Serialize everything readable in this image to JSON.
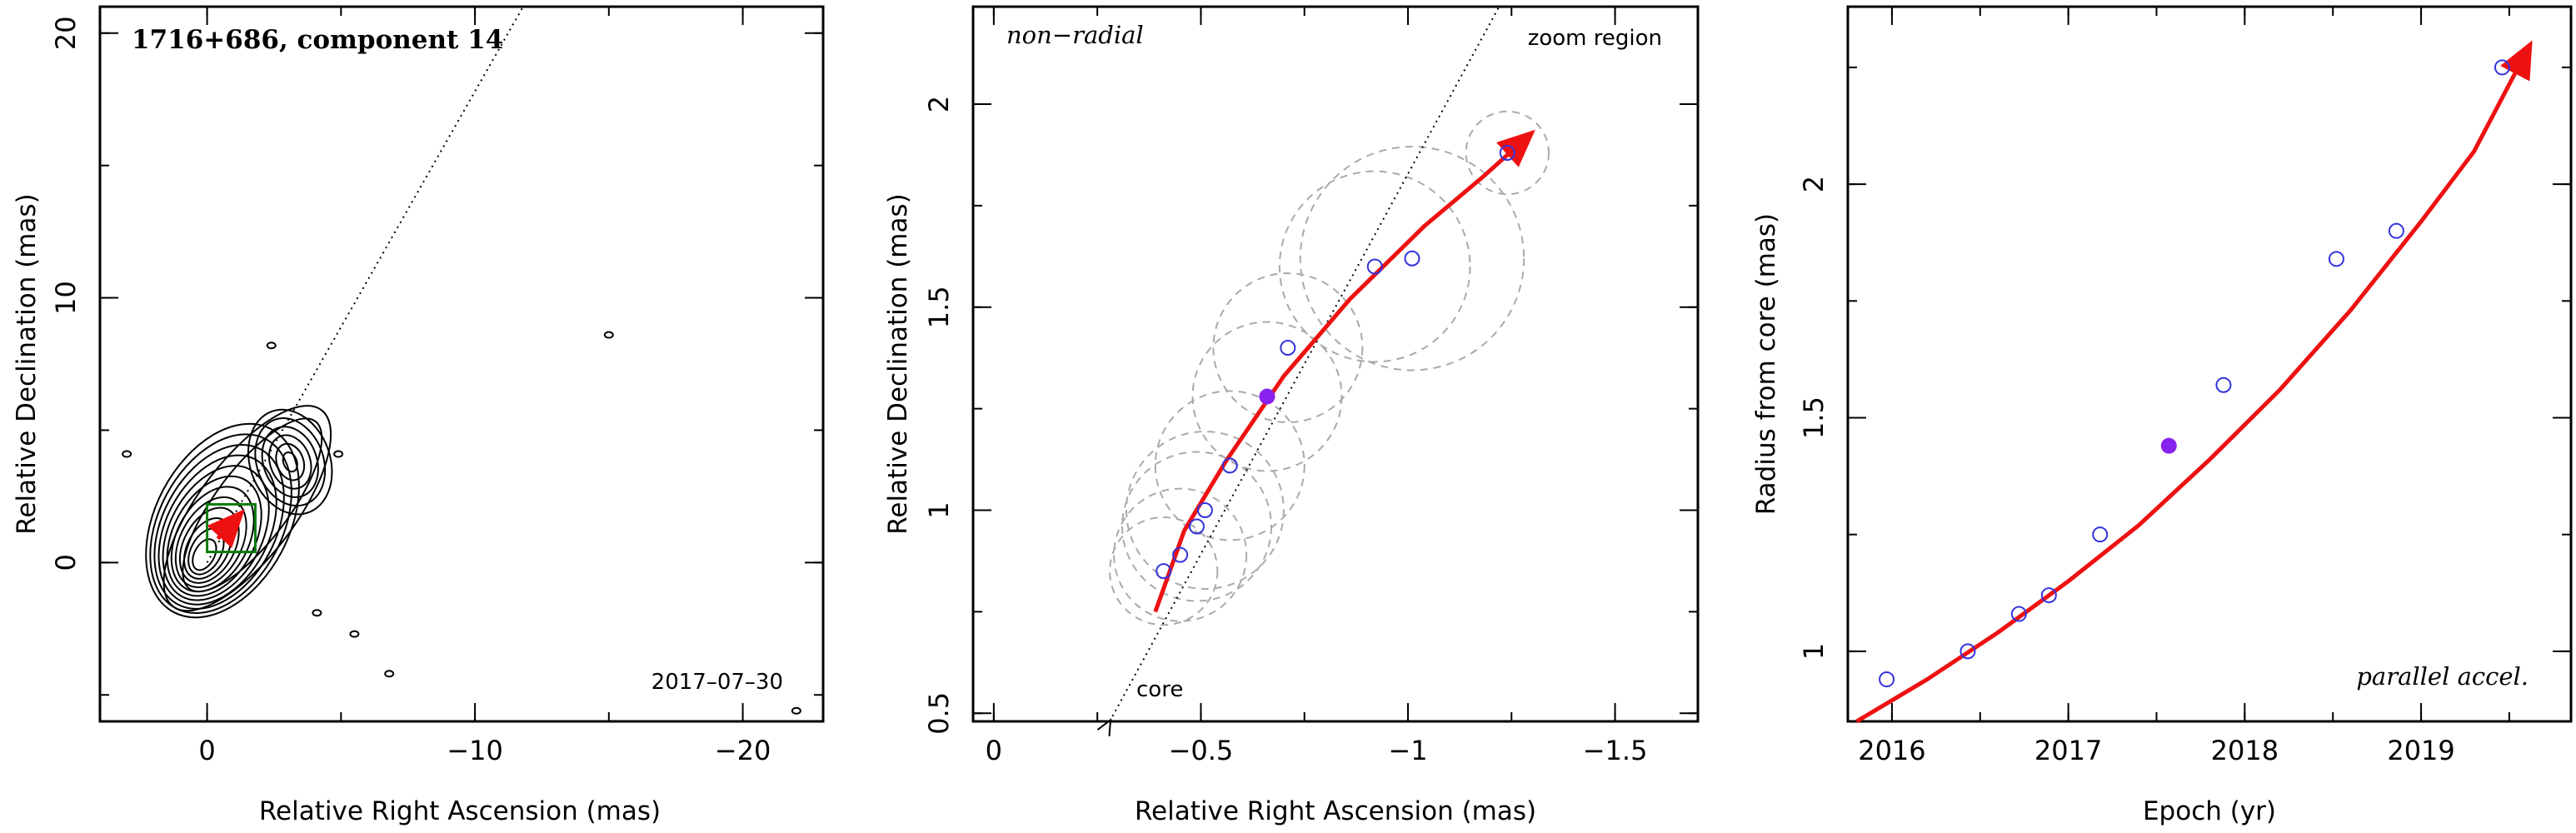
{
  "chart_data": [
    {
      "type": "contour",
      "title": "",
      "xlabel": "Relative Right Ascension (mas)",
      "ylabel": "Relative Declination (mas)",
      "xlim": [
        4,
        -23
      ],
      "ylim": [
        -6,
        21
      ],
      "xticks": [
        0,
        -10,
        -20
      ],
      "yticks": [
        0,
        10,
        20
      ],
      "x_tick_labels": [
        "0",
        "−10",
        "−20"
      ],
      "y_tick_labels": [
        "0",
        "10",
        "20"
      ],
      "annotations": [
        {
          "text": "1716+686, component 14",
          "style": "bold"
        },
        {
          "text": "2017–07–30",
          "style": "plain"
        }
      ],
      "contour_peaks": [
        {
          "x": 0.1,
          "y": 0.3,
          "levels": 12
        },
        {
          "x": -3.1,
          "y": 3.8,
          "levels": 6
        }
      ],
      "isolated_contours": [
        {
          "x": -2.4,
          "y": 8.2
        },
        {
          "x": 3.0,
          "y": 4.1
        },
        {
          "x": -15.0,
          "y": 8.6
        },
        {
          "x": -4.9,
          "y": 4.1
        },
        {
          "x": -4.1,
          "y": -1.9
        },
        {
          "x": -5.5,
          "y": -2.7
        },
        {
          "x": -6.8,
          "y": -4.2
        },
        {
          "x": -22.0,
          "y": -5.6
        }
      ],
      "direction_line": {
        "from": [
          0.0,
          0.0
        ],
        "to": [
          -11.8,
          21
        ]
      },
      "zoom_box": {
        "x": [
          0.0,
          -1.8
        ],
        "y": [
          0.4,
          2.2
        ],
        "color": "#0a7a0a"
      },
      "trajectory_arrow": {
        "from": [
          -0.4,
          0.9
        ],
        "to": [
          -1.3,
          1.9
        ],
        "color": "#ee1111"
      }
    },
    {
      "type": "scatter",
      "title": "",
      "xlabel": "Relative Right Ascension (mas)",
      "ylabel": "Relative Declination (mas)",
      "xlim": [
        0.05,
        -1.7
      ],
      "ylim": [
        0.48,
        2.24
      ],
      "xticks": [
        0,
        -0.5,
        -1,
        -1.5
      ],
      "yticks": [
        0.5,
        1,
        1.5,
        2
      ],
      "x_tick_labels": [
        "0",
        "−0.5",
        "−1",
        "−1.5"
      ],
      "y_tick_labels": [
        "0.5",
        "1",
        "1.5",
        "2"
      ],
      "annotations": [
        {
          "text": "non−radial",
          "style": "italic"
        },
        {
          "text": "zoom region",
          "style": "plain"
        },
        {
          "text": "core",
          "style": "plain"
        }
      ],
      "points": [
        {
          "x": -0.41,
          "y": 0.85,
          "r": 0.13
        },
        {
          "x": -0.45,
          "y": 0.89,
          "r": 0.16
        },
        {
          "x": -0.49,
          "y": 0.96,
          "r": 0.18
        },
        {
          "x": -0.51,
          "y": 1.0,
          "r": 0.19
        },
        {
          "x": -0.57,
          "y": 1.11,
          "r": 0.18
        },
        {
          "x": -0.66,
          "y": 1.28,
          "r": 0.18,
          "filled": true
        },
        {
          "x": -0.71,
          "y": 1.4,
          "r": 0.18
        },
        {
          "x": -0.92,
          "y": 1.6,
          "r": 0.23
        },
        {
          "x": -1.01,
          "y": 1.62,
          "r": 0.27
        },
        {
          "x": -1.24,
          "y": 1.88,
          "r": 0.1
        }
      ],
      "fit_curve": [
        [
          -0.39,
          0.75
        ],
        [
          -0.46,
          0.95
        ],
        [
          -0.56,
          1.12
        ],
        [
          -0.7,
          1.33
        ],
        [
          -0.86,
          1.52
        ],
        [
          -1.04,
          1.7
        ],
        [
          -1.18,
          1.82
        ],
        [
          -1.3,
          1.93
        ]
      ],
      "direction_line": {
        "from": [
          -0.28,
          0.48
        ],
        "to": [
          -1.22,
          2.24
        ]
      },
      "point_color": "#3333dd",
      "filled_color": "#8822ee",
      "curve_color": "#ee1111",
      "circle_color": "#aaaaaa"
    },
    {
      "type": "scatter",
      "title": "",
      "xlabel": "Epoch (yr)",
      "ylabel": "Radius from core (mas)",
      "xlim": [
        2015.75,
        2019.85
      ],
      "ylim": [
        0.85,
        2.38
      ],
      "xticks": [
        2016,
        2017,
        2018,
        2019
      ],
      "yticks": [
        1,
        1.5,
        2
      ],
      "x_tick_labels": [
        "2016",
        "2017",
        "2018",
        "2019"
      ],
      "y_tick_labels": [
        "1",
        "1.5",
        "2"
      ],
      "annotations": [
        {
          "text": "parallel accel.",
          "style": "italic"
        }
      ],
      "points": [
        {
          "x": 2015.97,
          "y": 0.94
        },
        {
          "x": 2016.43,
          "y": 1.0
        },
        {
          "x": 2016.72,
          "y": 1.08
        },
        {
          "x": 2016.89,
          "y": 1.12
        },
        {
          "x": 2017.18,
          "y": 1.25
        },
        {
          "x": 2017.57,
          "y": 1.44,
          "filled": true
        },
        {
          "x": 2017.88,
          "y": 1.57
        },
        {
          "x": 2018.52,
          "y": 1.84
        },
        {
          "x": 2018.86,
          "y": 1.9
        },
        {
          "x": 2019.46,
          "y": 2.25
        }
      ],
      "fit_curve": [
        [
          2015.8,
          0.85
        ],
        [
          2016.2,
          0.94
        ],
        [
          2016.6,
          1.04
        ],
        [
          2017.0,
          1.15
        ],
        [
          2017.4,
          1.27
        ],
        [
          2017.8,
          1.41
        ],
        [
          2018.2,
          1.56
        ],
        [
          2018.6,
          1.73
        ],
        [
          2019.0,
          1.92
        ],
        [
          2019.3,
          2.07
        ],
        [
          2019.62,
          2.3
        ]
      ],
      "point_color": "#3333dd",
      "filled_color": "#8822ee",
      "curve_color": "#ee1111"
    }
  ]
}
